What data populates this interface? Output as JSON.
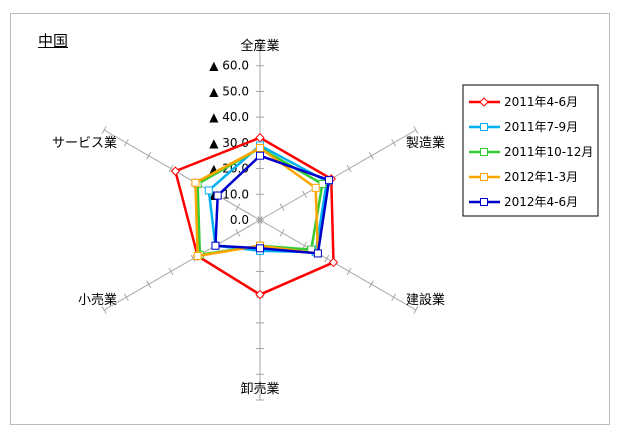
{
  "chart_data": {
    "type": "radar",
    "title": "中国",
    "axes": [
      "全産業",
      "製造業",
      "建設業",
      "卸売業",
      "小売業",
      "サービス業"
    ],
    "radial_ticks": [
      "0.0",
      "▲ 10.0",
      "▲ 20.0",
      "▲ 30.0",
      "▲ 40.0",
      "▲ 50.0",
      "▲ 60.0"
    ],
    "radial_range": [
      -70,
      0
    ],
    "series": [
      {
        "name": "2011年4-6月",
        "color": "#ff0000",
        "marker": "diamond",
        "values": [
          -32,
          -32,
          -33,
          -29,
          -28,
          -38
        ]
      },
      {
        "name": "2011年7-9月",
        "color": "#00b0f0",
        "marker": "square",
        "values": [
          -29,
          -30,
          -25,
          -12,
          -20,
          -23
        ]
      },
      {
        "name": "2011年10-12月",
        "color": "#33cc33",
        "marker": "square",
        "values": [
          -28,
          -28,
          -23,
          -10,
          -27,
          -28
        ]
      },
      {
        "name": "2012年1-3月",
        "color": "#ffa500",
        "marker": "square",
        "values": [
          -28,
          -25,
          -26,
          -10,
          -28,
          -29
        ]
      },
      {
        "name": "2012年4-6月",
        "color": "#0000cc",
        "marker": "square",
        "values": [
          -25,
          -31,
          -26,
          -11,
          -20,
          -19
        ]
      }
    ]
  }
}
